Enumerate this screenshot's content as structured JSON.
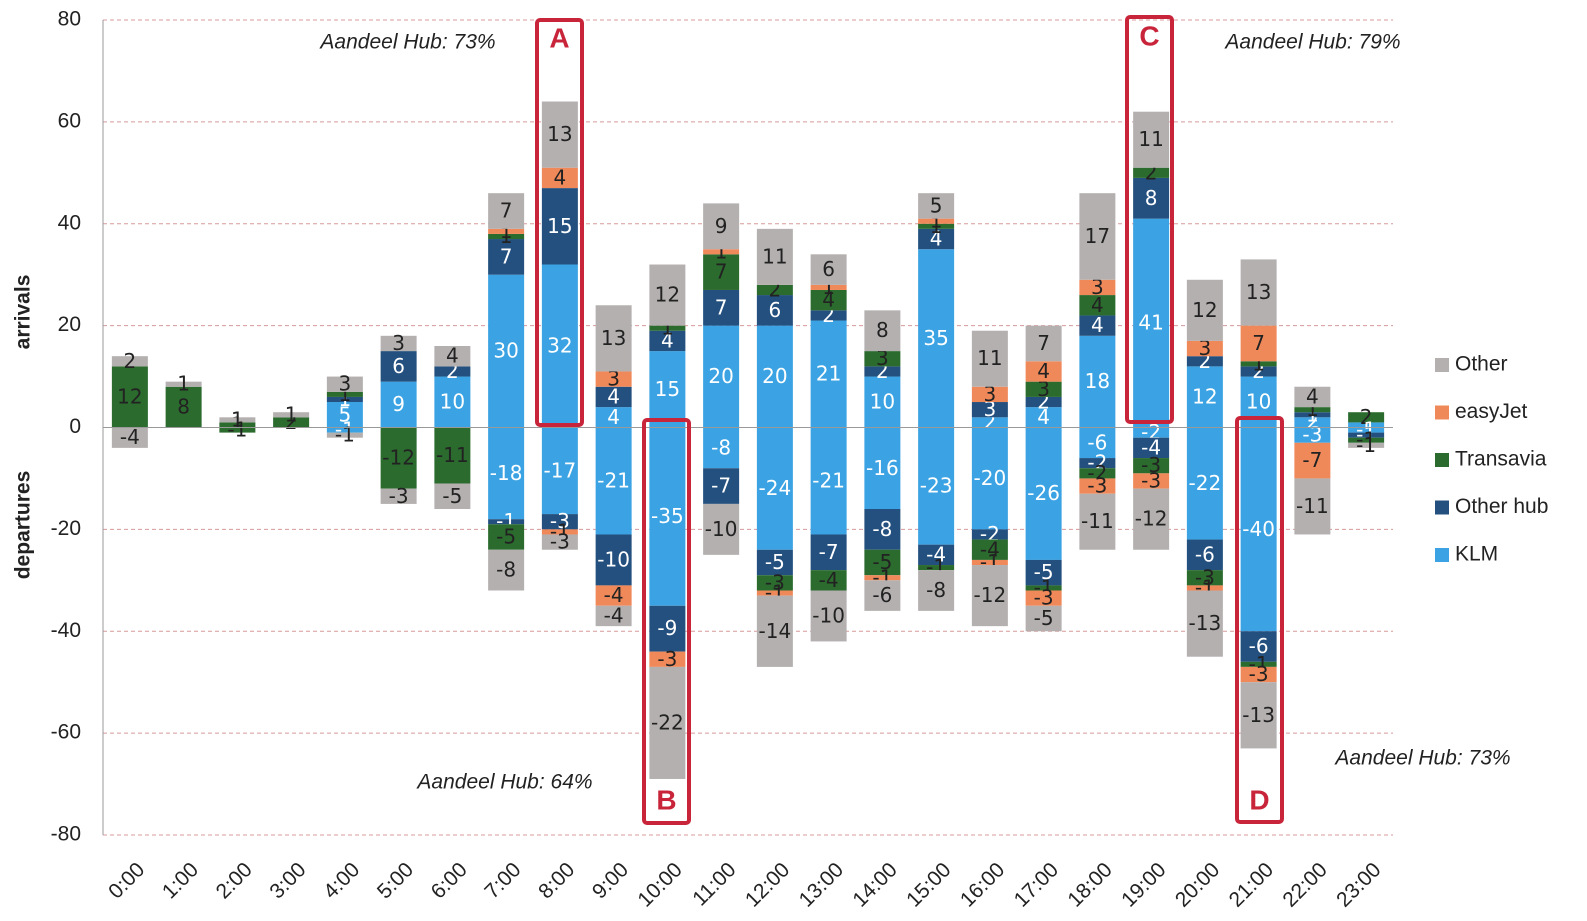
{
  "chart_data": {
    "type": "diverging-stacked-bar",
    "y_label_top": "arrivals",
    "y_label_bottom": "departures",
    "categories": [
      "0:00",
      "1:00",
      "2:00",
      "3:00",
      "4:00",
      "5:00",
      "6:00",
      "7:00",
      "8:00",
      "9:00",
      "10:00",
      "11:00",
      "12:00",
      "13:00",
      "14:00",
      "15:00",
      "16:00",
      "17:00",
      "18:00",
      "19:00",
      "20:00",
      "21:00",
      "22:00",
      "23:00"
    ],
    "ylim": [
      -80,
      80
    ],
    "yticks": [
      -80,
      -60,
      -40,
      -20,
      0,
      20,
      40,
      60,
      80
    ],
    "grid": true,
    "series": [
      {
        "name": "KLM",
        "color": "#3ba3e3",
        "arrivals": [
          0,
          0,
          0,
          0,
          5,
          9,
          10,
          30,
          32,
          4,
          15,
          20,
          20,
          21,
          10,
          35,
          2,
          4,
          18,
          41,
          12,
          10,
          2,
          1
        ],
        "departures": [
          0,
          0,
          0,
          0,
          -1,
          0,
          0,
          -18,
          -17,
          -21,
          -35,
          -8,
          -24,
          -21,
          -16,
          -23,
          -20,
          -26,
          -6,
          -2,
          -22,
          -40,
          -3,
          -1
        ]
      },
      {
        "name": "Other hub",
        "color": "#24507f",
        "arrivals": [
          0,
          0,
          0,
          0,
          1,
          6,
          2,
          7,
          15,
          4,
          4,
          7,
          6,
          2,
          2,
          4,
          3,
          2,
          4,
          8,
          2,
          2,
          1,
          0
        ],
        "departures": [
          0,
          0,
          0,
          0,
          0,
          0,
          0,
          -1,
          -3,
          -10,
          -9,
          -7,
          -5,
          -7,
          -8,
          -4,
          -2,
          -5,
          -2,
          -4,
          -6,
          -6,
          0,
          -1
        ]
      },
      {
        "name": "Transavia",
        "color": "#2b6b2e",
        "arrivals": [
          12,
          8,
          1,
          2,
          1,
          0,
          0,
          1,
          0,
          0,
          1,
          7,
          2,
          4,
          3,
          1,
          0,
          3,
          4,
          2,
          0,
          1,
          1,
          2
        ],
        "departures": [
          0,
          0,
          -1,
          0,
          0,
          -12,
          -11,
          -5,
          0,
          0,
          0,
          0,
          -3,
          -4,
          -5,
          -1,
          -4,
          -1,
          -2,
          -3,
          -3,
          -1,
          0,
          -1
        ]
      },
      {
        "name": "easyJet",
        "color": "#f0895a",
        "arrivals": [
          0,
          0,
          0,
          0,
          0,
          0,
          0,
          1,
          4,
          3,
          0,
          1,
          0,
          1,
          0,
          1,
          3,
          4,
          3,
          0,
          3,
          7,
          0,
          0
        ],
        "departures": [
          0,
          0,
          0,
          0,
          0,
          0,
          0,
          0,
          -1,
          -4,
          -3,
          0,
          -1,
          0,
          -1,
          0,
          -1,
          -3,
          -3,
          -3,
          -1,
          -3,
          -7,
          0
        ]
      },
      {
        "name": "Other",
        "color": "#b5b0b0",
        "arrivals": [
          2,
          1,
          1,
          1,
          3,
          3,
          4,
          7,
          13,
          13,
          12,
          9,
          11,
          6,
          8,
          5,
          11,
          7,
          17,
          11,
          12,
          13,
          4,
          0
        ],
        "departures": [
          -4,
          0,
          0,
          0,
          -1,
          -3,
          -5,
          -8,
          -3,
          -4,
          -22,
          -10,
          -14,
          -10,
          -6,
          -8,
          -12,
          -5,
          -11,
          -12,
          -13,
          -13,
          -11,
          -1
        ]
      }
    ],
    "annotations": [
      "Aandeel Hub: 73%",
      "Aandeel Hub: 79%",
      "Aandeel Hub: 64%",
      "Aandeel Hub: 73%"
    ],
    "boxes": [
      "A",
      "B",
      "C",
      "D"
    ]
  }
}
